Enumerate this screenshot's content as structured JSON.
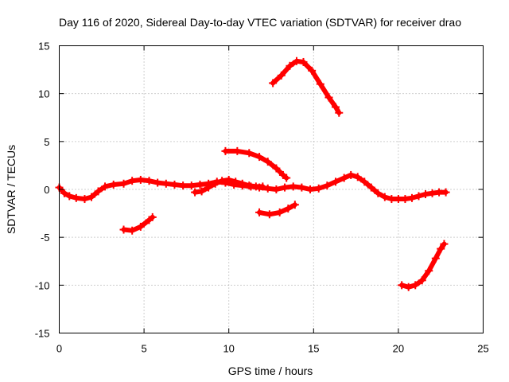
{
  "chart_data": {
    "type": "scatter",
    "title": "Day 116 of 2020, Sidereal Day-to-day VTEC variation (SDTVAR) for receiver drao",
    "xlabel": "GPS time / hours",
    "ylabel": "SDTVAR / TECUs",
    "xlim": [
      0,
      25
    ],
    "ylim": [
      -15,
      15
    ],
    "xticks": [
      0,
      5,
      10,
      15,
      20,
      25
    ],
    "yticks": [
      -15,
      -10,
      -5,
      0,
      5,
      10,
      15
    ],
    "grid": true,
    "legend": "none",
    "series_color": "#ff0000",
    "series": [
      {
        "name": "track-1",
        "x": [
          0,
          0.3,
          0.6,
          1.0,
          1.5,
          1.9,
          2.3,
          2.7,
          3.2,
          3.8,
          4.3,
          4.8,
          5.3,
          5.8,
          6.3,
          6.8,
          7.3,
          7.8,
          8.3,
          8.8,
          9.3,
          9.8,
          10.3,
          10.8,
          11.3,
          11.8,
          12.3,
          12.8,
          13.3,
          13.8,
          14.3,
          14.8,
          15.3,
          15.8,
          16.3,
          16.8,
          17.2,
          17.6,
          18.0,
          18.4,
          18.8,
          19.2,
          19.6,
          20.0,
          20.4,
          20.8,
          21.2,
          21.6,
          22.0,
          22.4,
          22.8
        ],
        "y": [
          0.2,
          -0.4,
          -0.7,
          -0.9,
          -1.0,
          -0.8,
          -0.2,
          0.3,
          0.5,
          0.6,
          0.9,
          1.0,
          0.9,
          0.7,
          0.6,
          0.5,
          0.4,
          0.4,
          0.5,
          0.6,
          0.8,
          0.7,
          0.5,
          0.4,
          0.3,
          0.2,
          0.1,
          0.0,
          0.2,
          0.3,
          0.2,
          0.0,
          0.1,
          0.4,
          0.8,
          1.2,
          1.5,
          1.3,
          0.8,
          0.2,
          -0.4,
          -0.8,
          -1.0,
          -1.0,
          -1.0,
          -0.9,
          -0.7,
          -0.5,
          -0.4,
          -0.3,
          -0.3
        ]
      },
      {
        "name": "track-2",
        "x": [
          8.0,
          8.4,
          8.8,
          9.2,
          9.6,
          10.0,
          10.4,
          10.8,
          11.2,
          11.6,
          12.0
        ],
        "y": [
          -0.3,
          -0.2,
          0.2,
          0.6,
          0.9,
          1.0,
          0.8,
          0.6,
          0.4,
          0.3,
          0.3
        ]
      },
      {
        "name": "track-3",
        "x": [
          3.8,
          4.3,
          4.8,
          5.3,
          5.5
        ],
        "y": [
          -4.2,
          -4.3,
          -3.9,
          -3.2,
          -2.9
        ]
      },
      {
        "name": "track-4",
        "x": [
          9.8,
          10.5,
          11.2,
          11.8,
          12.3,
          12.8,
          13.2,
          13.4
        ],
        "y": [
          4.0,
          4.0,
          3.8,
          3.4,
          2.9,
          2.2,
          1.5,
          1.2
        ]
      },
      {
        "name": "track-5",
        "x": [
          11.8,
          12.4,
          13.0,
          13.5,
          13.9
        ],
        "y": [
          -2.4,
          -2.6,
          -2.4,
          -2.0,
          -1.6
        ]
      },
      {
        "name": "track-6",
        "x": [
          12.6,
          13.1,
          13.6,
          14.0,
          14.4,
          14.9,
          15.4,
          15.9,
          16.3,
          16.5
        ],
        "y": [
          11.1,
          11.9,
          12.9,
          13.4,
          13.3,
          12.4,
          11.0,
          9.6,
          8.6,
          8.0
        ]
      },
      {
        "name": "track-7",
        "x": [
          20.2,
          20.6,
          21.0,
          21.4,
          21.8,
          22.2,
          22.5,
          22.7
        ],
        "y": [
          -10.0,
          -10.2,
          -10.0,
          -9.5,
          -8.5,
          -7.2,
          -6.2,
          -5.7
        ]
      }
    ]
  }
}
